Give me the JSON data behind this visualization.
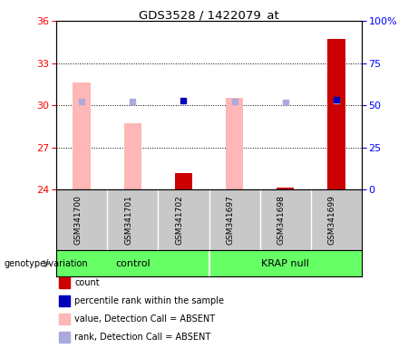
{
  "title": "GDS3528 / 1422079_at",
  "samples": [
    "GSM341700",
    "GSM341701",
    "GSM341702",
    "GSM341697",
    "GSM341698",
    "GSM341699"
  ],
  "group_labels": [
    "control",
    "KRAP null"
  ],
  "ylim_left": [
    24,
    36
  ],
  "ylim_right": [
    0,
    100
  ],
  "yticks_left": [
    24,
    27,
    30,
    33,
    36
  ],
  "yticks_right": [
    0,
    25,
    50,
    75,
    100
  ],
  "ytick_labels_right": [
    "0",
    "25",
    "50",
    "75",
    "100%"
  ],
  "pink_bar_color": "#FFB6B6",
  "red_bar_color": "#CC0000",
  "blue_square_color": "#0000BB",
  "lavender_square_color": "#AAAADD",
  "bg_plot_color": "#FFFFFF",
  "bg_sample_color": "#C8C8C8",
  "bg_group_color": "#66FF66",
  "has_pink_bar": [
    true,
    true,
    false,
    true,
    false,
    false
  ],
  "has_red_bar": [
    false,
    false,
    true,
    false,
    true,
    true
  ],
  "pink_bar_tops": [
    31.6,
    28.7,
    0,
    30.5,
    0,
    0
  ],
  "red_bar_tops": [
    0,
    0,
    25.2,
    0,
    24.15,
    34.7
  ],
  "blue_square_present": [
    false,
    false,
    true,
    false,
    false,
    true
  ],
  "lavender_square_present": [
    true,
    true,
    false,
    true,
    true,
    true
  ],
  "blue_square_y": [
    30.35,
    30.3,
    30.35,
    30.3,
    30.25,
    30.4
  ],
  "lavender_square_y": [
    30.25,
    30.25,
    0,
    30.25,
    30.2,
    30.35
  ],
  "bar_width": 0.35,
  "legend_items": [
    {
      "color": "#CC0000",
      "label": "count"
    },
    {
      "color": "#0000BB",
      "label": "percentile rank within the sample"
    },
    {
      "color": "#FFB6B6",
      "label": "value, Detection Call = ABSENT"
    },
    {
      "color": "#AAAADD",
      "label": "rank, Detection Call = ABSENT"
    }
  ],
  "genotype_label": "genotype/variation"
}
